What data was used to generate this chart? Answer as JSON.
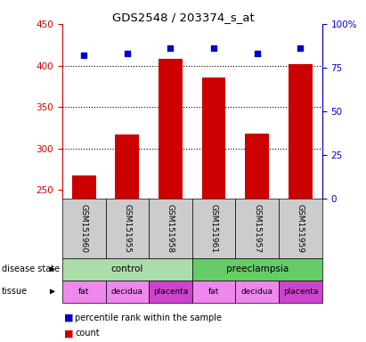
{
  "title": "GDS2548 / 203374_s_at",
  "samples": [
    "GSM151960",
    "GSM151955",
    "GSM151958",
    "GSM151961",
    "GSM151957",
    "GSM151959"
  ],
  "counts": [
    268,
    317,
    408,
    385,
    318,
    402
  ],
  "percentile_ranks": [
    82,
    83,
    86,
    86,
    83,
    86
  ],
  "ylim_left": [
    240,
    450
  ],
  "ylim_right": [
    0,
    100
  ],
  "yticks_left": [
    250,
    300,
    350,
    400,
    450
  ],
  "yticks_right": [
    0,
    25,
    50,
    75,
    100
  ],
  "bar_color": "#cc0000",
  "dot_color": "#0000cc",
  "bar_bottom": 240,
  "disease_state": [
    {
      "label": "control",
      "span": [
        0,
        3
      ],
      "color": "#aaeea a"
    },
    {
      "label": "preeclampsia",
      "span": [
        3,
        6
      ],
      "color": "#66dd66"
    }
  ],
  "tissue": [
    {
      "label": "fat",
      "span": [
        0,
        1
      ],
      "color": "#ee88ee"
    },
    {
      "label": "decidua",
      "span": [
        1,
        2
      ],
      "color": "#ee88ee"
    },
    {
      "label": "placenta",
      "span": [
        2,
        3
      ],
      "color": "#cc44cc"
    },
    {
      "label": "fat",
      "span": [
        3,
        4
      ],
      "color": "#ee88ee"
    },
    {
      "label": "decidua",
      "span": [
        4,
        5
      ],
      "color": "#ee88ee"
    },
    {
      "label": "placenta",
      "span": [
        5,
        6
      ],
      "color": "#cc44cc"
    }
  ],
  "left_label_color": "#cc0000",
  "right_label_color": "#0000cc",
  "grid_color": "#000000",
  "sample_bg_color": "#cccccc",
  "ds_control_color": "#aaddaa",
  "ds_preeclampsia_color": "#66cc66",
  "tissue_light_color": "#ee88ee",
  "tissue_dark_color": "#cc44cc"
}
